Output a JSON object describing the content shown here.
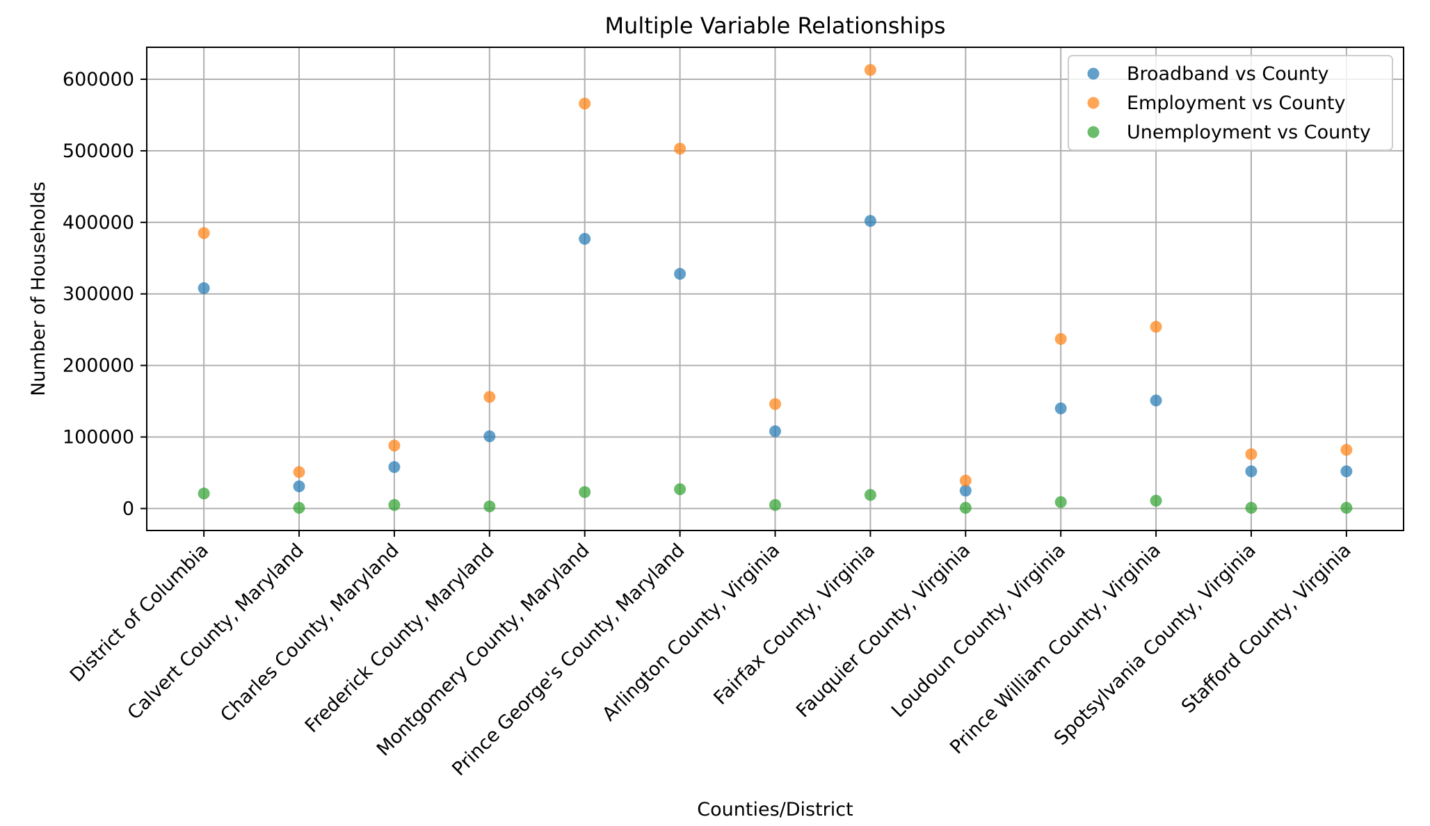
{
  "chart_data": {
    "type": "scatter",
    "title": "Multiple Variable Relationships",
    "xlabel": "Counties/District",
    "ylabel": "Number of Households",
    "categories": [
      "District of Columbia",
      "Calvert County, Maryland",
      "Charles County, Maryland",
      "Frederick County, Maryland",
      "Montgomery County, Maryland",
      "Prince George's County, Maryland",
      "Arlington County, Virginia",
      "Fairfax County, Virginia",
      "Fauquier County, Virginia",
      "Loudoun County, Virginia",
      "Prince William County, Virginia",
      "Spotsylvania County, Virginia",
      "Stafford County, Virginia"
    ],
    "series": [
      {
        "name": "Broadband vs County",
        "color": "#1f77b4",
        "values": [
          308000,
          31000,
          58000,
          101000,
          377000,
          328000,
          108000,
          402000,
          25000,
          140000,
          151000,
          52000,
          52000
        ]
      },
      {
        "name": "Employment vs County",
        "color": "#ff7f0e",
        "values": [
          385000,
          51000,
          88000,
          156000,
          566000,
          503000,
          146000,
          613000,
          39000,
          237000,
          254000,
          76000,
          82000
        ]
      },
      {
        "name": "Unemployment vs County",
        "color": "#2ca02c",
        "values": [
          21000,
          1000,
          5000,
          3000,
          23000,
          27000,
          5000,
          19000,
          1000,
          9000,
          11000,
          1000,
          1000
        ]
      }
    ],
    "yticks": [
      0,
      100000,
      200000,
      300000,
      400000,
      500000,
      600000
    ],
    "ytick_labels": [
      "0",
      "100000",
      "200000",
      "300000",
      "400000",
      "500000",
      "600000"
    ],
    "ylim": [
      -30700,
      644700
    ],
    "grid": true,
    "legend_position": "top-right",
    "marker_opacity": 0.7
  }
}
